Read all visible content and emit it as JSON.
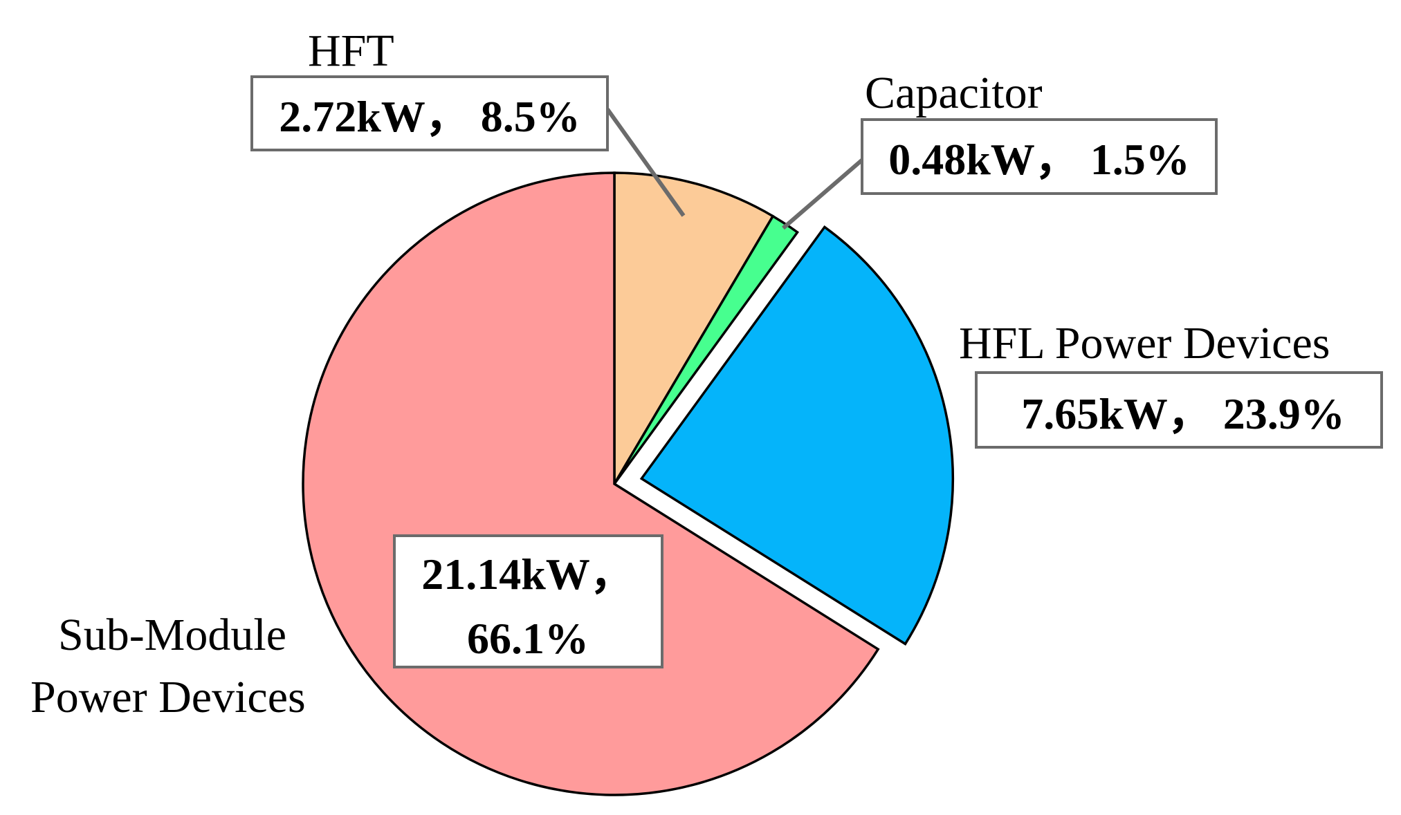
{
  "chart_data": {
    "type": "pie",
    "title": "",
    "unit": "kW",
    "slices": [
      {
        "category": "HFT",
        "value": 2.72,
        "percent": 8.5,
        "value_label": "2.72kW， 8.5%",
        "color": "#FCCB98",
        "exploded": false
      },
      {
        "category": "Capacitor",
        "value": 0.48,
        "percent": 1.5,
        "value_label": "0.48kW， 1.5%",
        "color": "#47FF8F",
        "exploded": false
      },
      {
        "category": "HFL Power Devices",
        "value": 7.65,
        "percent": 23.9,
        "value_label": "7.65kW， 23.9%",
        "color": "#05B4FA",
        "exploded": true
      },
      {
        "category": [
          "Sub-Module",
          "Power Devices"
        ],
        "value": 21.14,
        "percent": 66.1,
        "value_label": [
          "21.14kW，",
          "66.1%"
        ],
        "color": "#FF9B9B",
        "exploded": false
      }
    ],
    "start_angle_deg": 90,
    "direction": "clockwise",
    "legend": "none"
  }
}
